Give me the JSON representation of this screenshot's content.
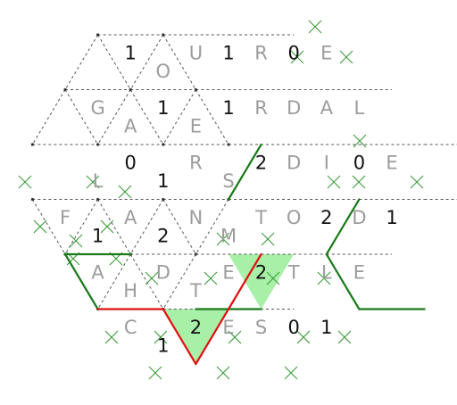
{
  "puzzle": {
    "colors": {
      "grid_line": "#555555",
      "vertex_dot": "#333333",
      "cross": "#3a9a3a",
      "green_line": "#1a7a1a",
      "red_line": "#e01010",
      "shaded_fill": "#a8f0a8",
      "number": "#111111",
      "letter": "#9c9c9c"
    },
    "rows": [
      {
        "row": 0,
        "cells": [
          "",
          "1",
          "O",
          "U",
          "1",
          "R",
          "0",
          "E",
          ""
        ]
      },
      {
        "row": 1,
        "cells": [
          "",
          "G",
          "A",
          "1",
          "E",
          "1",
          "R",
          "D",
          "A",
          "L",
          ""
        ]
      },
      {
        "row": 2,
        "cells": [
          "",
          "",
          "L",
          "0",
          "1",
          "R",
          "S",
          "2",
          "D",
          "I",
          "0",
          "E",
          ""
        ]
      },
      {
        "row": 3,
        "cells": [
          "",
          "F",
          "1",
          "A",
          "2",
          "N",
          "M",
          "T",
          "O",
          "2",
          "D",
          "1",
          ""
        ]
      },
      {
        "row": 4,
        "cells": [
          "",
          "A",
          "H",
          "D",
          "T",
          "E",
          "2",
          "T",
          "L",
          "E",
          ""
        ]
      },
      {
        "row": 5,
        "cells": [
          "",
          "C",
          "1",
          "2",
          "E",
          "S",
          "0",
          "1",
          ""
        ]
      }
    ],
    "shaded_cells": [
      {
        "row": 4,
        "col": 6
      },
      {
        "row": 5,
        "col": 3
      }
    ]
  }
}
